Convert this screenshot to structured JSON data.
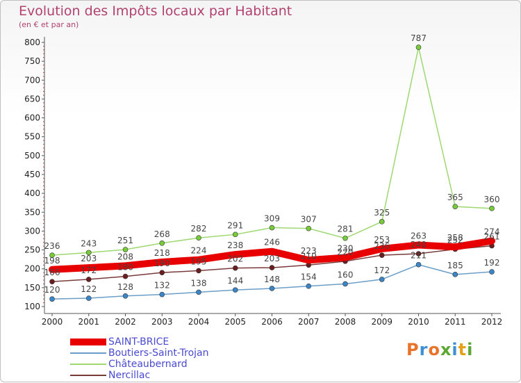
{
  "header": {
    "title": "Evolution des Impôts locaux par Habitant",
    "subtitle": "(en € et par an)"
  },
  "logo": {
    "text": "Proxiti",
    "colors": [
      "#e8732a",
      "#3f8fd2",
      "#e8732a",
      "#5aa832",
      "#3f8fd2",
      "#e3a21a",
      "#5aa832"
    ]
  },
  "colors": {
    "title": "#b2416e",
    "axis_text": "#222222",
    "legend_text": "#4a4ad0"
  },
  "chart_data": {
    "type": "line",
    "title": "Evolution des Impôts locaux par Habitant",
    "subtitle": "(en € et par an)",
    "xlabel": "",
    "ylabel": "",
    "x": [
      "2000",
      "2001",
      "2002",
      "2003",
      "2004",
      "2005",
      "2006",
      "2007",
      "2008",
      "2009",
      "2010",
      "2011",
      "2012"
    ],
    "ylim": [
      100,
      800
    ],
    "yticks": [
      100,
      150,
      200,
      250,
      300,
      350,
      400,
      450,
      500,
      550,
      600,
      650,
      700,
      750,
      800
    ],
    "grid": false,
    "legend_position": "bottom-left",
    "series": [
      {
        "name": "SAINT-BRICE",
        "color": "#e80000",
        "emphasis": true,
        "values": [
          198,
          203,
          208,
          218,
          224,
          238,
          246,
          223,
          230,
          253,
          263,
          258,
          274
        ],
        "labels": [
          "198",
          "203",
          "208",
          "218",
          "224",
          "238",
          "246",
          "223",
          "230",
          "253",
          "263",
          "258",
          "274"
        ]
      },
      {
        "name": "Boutiers-Saint-Trojan",
        "color": "#6a9ec8",
        "point_color": "#3a86c8",
        "values": [
          120,
          122,
          128,
          132,
          138,
          144,
          148,
          154,
          160,
          172,
          211,
          185,
          192
        ],
        "labels": [
          "120",
          "122",
          "128",
          "132",
          "138",
          "144",
          "148",
          "154",
          "160",
          "172",
          "211",
          "185",
          "192"
        ]
      },
      {
        "name": "Châteaubernard",
        "color": "#9ed870",
        "point_color": "#78cc3c",
        "values": [
          236,
          243,
          251,
          268,
          282,
          291,
          309,
          307,
          281,
          325,
          787,
          365,
          360
        ],
        "labels": [
          "236",
          "243",
          "251",
          "268",
          "282",
          "291",
          "309",
          "307",
          "281",
          "325",
          "787",
          "365",
          "360"
        ]
      },
      {
        "name": "Nercillac",
        "color": "#7a3a3a",
        "point_color": "#6a1e1e",
        "values": [
          166,
          172,
          180,
          190,
          195,
          202,
          203,
          210,
          220,
          236,
          240,
          252,
          261
        ],
        "labels": [
          "166",
          "172",
          "180",
          "190",
          "195",
          "202",
          "203",
          "210",
          "220",
          "236",
          "240",
          "252",
          "261"
        ]
      }
    ]
  }
}
